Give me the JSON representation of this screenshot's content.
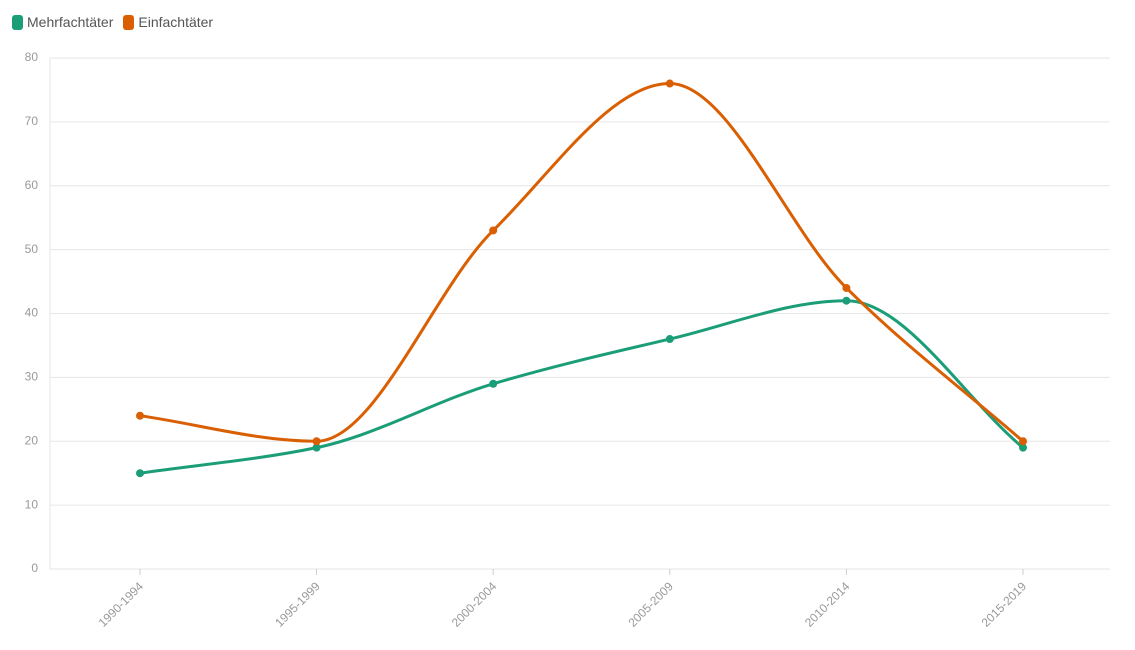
{
  "chart_data": {
    "type": "line",
    "categories": [
      "1990-1994",
      "1995-1999",
      "2000-2004",
      "2005-2009",
      "2010-2014",
      "2015-2019"
    ],
    "series": [
      {
        "name": "Mehrfachtäter",
        "color": "#1b9e77",
        "values": [
          15,
          19,
          29,
          36,
          42,
          19
        ]
      },
      {
        "name": "Einfachtäter",
        "color": "#d95f02",
        "values": [
          24,
          20,
          53,
          76,
          44,
          20
        ]
      }
    ],
    "ylim": [
      0,
      80
    ],
    "yticks": [
      0,
      10,
      20,
      30,
      40,
      50,
      60,
      70,
      80
    ],
    "grid": true,
    "legend_position": "top-left",
    "curve": "smooth"
  }
}
